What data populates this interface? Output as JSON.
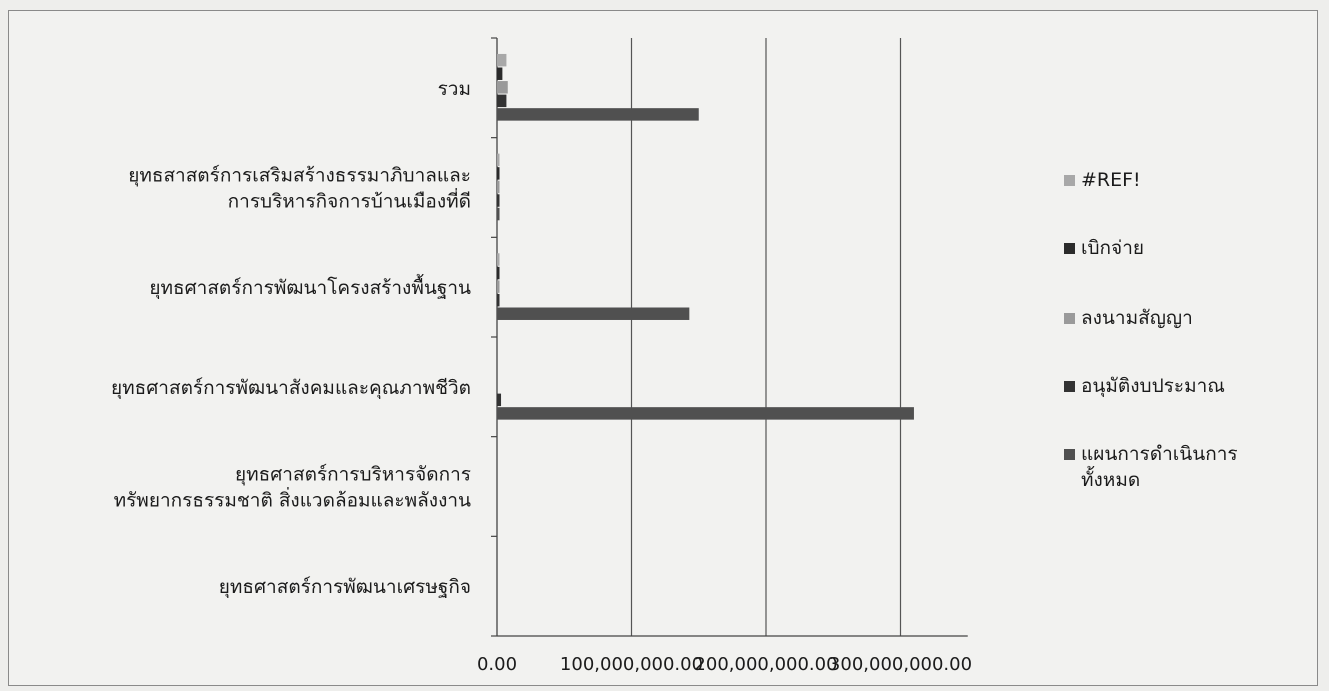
{
  "chart_data": {
    "type": "bar",
    "orientation": "horizontal",
    "categories": [
      [
        "รวม"
      ],
      [
        "ยุทธสาสตร์การเสริมสร้างธรรมาภิบาลและ",
        "การบริหารกิจการบ้านเมืองที่ดี"
      ],
      [
        "ยุทธศาสตร์การพัฒนาโครงสร้างพื้นฐาน"
      ],
      [
        "ยุทธศาสตร์การพัฒนาสังคมและคุณภาพชีวิต"
      ],
      [
        "ยุทธศาสตร์การบริหารจัดการ",
        "ทรัพยากรธรรมชาติ สิ่งแวดล้อมและพลังงาน"
      ],
      [
        "ยุทธศาสตร์การพัฒนาเศรษฐกิจ"
      ]
    ],
    "series": [
      {
        "name": "#REF!",
        "color": "#a8a8a8",
        "values": [
          7000000,
          500000,
          1000000,
          0,
          0,
          0
        ]
      },
      {
        "name": "เบิกจ่าย",
        "color": "#2b2b2b",
        "values": [
          4000000,
          800000,
          900000,
          0,
          0,
          0
        ]
      },
      {
        "name": "ลงนามสัญญา",
        "color": "#9a9a9a",
        "values": [
          8000000,
          600000,
          1000000,
          0,
          0,
          0
        ]
      },
      {
        "name": "อนุมัติงบประมาณ",
        "color": "#333333",
        "values": [
          7000000,
          900000,
          1500000,
          3000000,
          0,
          0
        ]
      },
      {
        "name": "แผนการดำเนินการทั้งหมด",
        "color": "#505050",
        "values": [
          150000000,
          1000000,
          143000000,
          310000000,
          0,
          0
        ]
      }
    ],
    "legend_labels": [
      [
        "#REF!"
      ],
      [
        "เบิกจ่าย"
      ],
      [
        "ลงนามสัญญา"
      ],
      [
        "อนุมัติงบประมาณ"
      ],
      [
        "แผนการดำเนินการ",
        "ทั้งหมด"
      ]
    ],
    "x_ticks": [
      "0.00",
      "100,000,000.00",
      "200,000,000.00",
      "300,000,000.00"
    ],
    "xlim": [
      0,
      350000000
    ],
    "legend_position": "right",
    "grid": "vertical"
  }
}
